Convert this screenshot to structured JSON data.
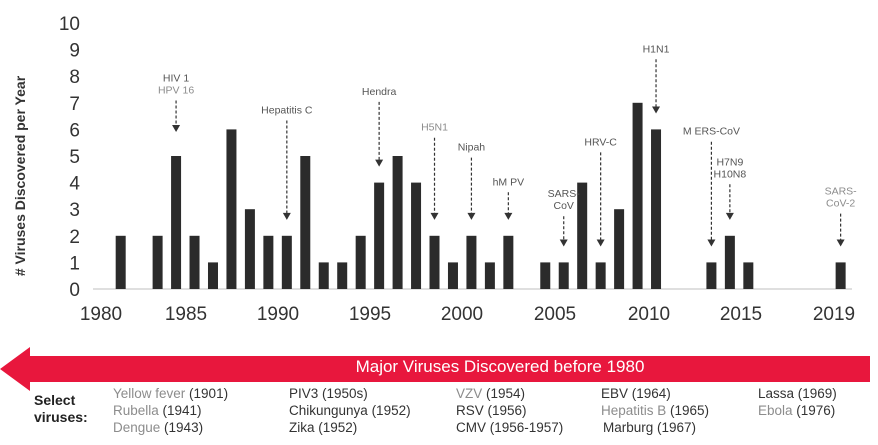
{
  "chart_data": {
    "type": "bar",
    "ylabel": "# Viruses Discovered per Year",
    "ylim": [
      0,
      10
    ],
    "xlim": [
      1980,
      2019
    ],
    "x_ticks": [
      "1980",
      "1985",
      "1990",
      "1995",
      "2000",
      "2005",
      "2010",
      "2015",
      "2019"
    ],
    "y_ticks": [
      "0",
      "1",
      "2",
      "3",
      "4",
      "5",
      "6",
      "7",
      "8",
      "9",
      "10"
    ],
    "grid": false,
    "bar_color": "#2b2b2b",
    "bars": [
      {
        "year": 1981,
        "value": 2
      },
      {
        "year": 1983,
        "value": 2
      },
      {
        "year": 1984,
        "value": 5
      },
      {
        "year": 1985,
        "value": 2
      },
      {
        "year": 1986,
        "value": 1
      },
      {
        "year": 1987,
        "value": 6
      },
      {
        "year": 1988,
        "value": 3
      },
      {
        "year": 1989,
        "value": 2
      },
      {
        "year": 1990,
        "value": 2
      },
      {
        "year": 1991,
        "value": 5
      },
      {
        "year": 1992,
        "value": 1
      },
      {
        "year": 1993,
        "value": 1
      },
      {
        "year": 1994,
        "value": 2
      },
      {
        "year": 1995,
        "value": 4
      },
      {
        "year": 1996,
        "value": 5
      },
      {
        "year": 1997,
        "value": 4
      },
      {
        "year": 1998,
        "value": 2
      },
      {
        "year": 1999,
        "value": 1
      },
      {
        "year": 2000,
        "value": 2
      },
      {
        "year": 2001,
        "value": 1
      },
      {
        "year": 2002,
        "value": 2
      },
      {
        "year": 2004,
        "value": 1
      },
      {
        "year": 2005,
        "value": 1
      },
      {
        "year": 2006,
        "value": 4
      },
      {
        "year": 2007,
        "value": 1
      },
      {
        "year": 2008,
        "value": 3
      },
      {
        "year": 2009,
        "value": 7
      },
      {
        "year": 2010,
        "value": 6
      },
      {
        "year": 2013,
        "value": 1
      },
      {
        "year": 2014,
        "value": 2
      },
      {
        "year": 2015,
        "value": 1
      },
      {
        "year": 2020,
        "value": 1
      }
    ],
    "annotations": [
      {
        "lines": [
          "HIV 1",
          "HPV 16"
        ],
        "colors": [
          "#555555",
          "#8c8c8c"
        ],
        "year": 1984,
        "label_top": 5.9,
        "text_y": 7.8
      },
      {
        "lines": [
          "Hepatitis C"
        ],
        "colors": [
          "#555555"
        ],
        "year": 1990,
        "label_top": 2.6,
        "text_y": 6.6
      },
      {
        "lines": [
          "Hendra"
        ],
        "colors": [
          "#555555"
        ],
        "year": 1995,
        "label_top": 4.6,
        "text_y": 7.3
      },
      {
        "lines": [
          "H5N1"
        ],
        "colors": [
          "#8c8c8c"
        ],
        "year": 1998,
        "label_top": 2.6,
        "text_y": 5.95
      },
      {
        "lines": [
          "Nipah"
        ],
        "colors": [
          "#555555"
        ],
        "year": 2000,
        "label_top": 2.6,
        "text_y": 5.2
      },
      {
        "lines": [
          "hM PV"
        ],
        "colors": [
          "#555555"
        ],
        "year": 2002,
        "label_top": 2.6,
        "text_y": 3.9
      },
      {
        "lines": [
          "SARS-",
          "CoV"
        ],
        "colors": [
          "#555555",
          "#555555"
        ],
        "year": 2005,
        "label_top": 1.6,
        "text_y": 3.45
      },
      {
        "lines": [
          "HRV-C"
        ],
        "colors": [
          "#555555"
        ],
        "year": 2007,
        "label_top": 1.6,
        "text_y": 5.4
      },
      {
        "lines": [
          "H1N1"
        ],
        "colors": [
          "#555555"
        ],
        "year": 2010,
        "label_top": 6.6,
        "text_y": 8.9
      },
      {
        "lines": [
          "M ERS-CoV"
        ],
        "colors": [
          "#555555"
        ],
        "year": 2013,
        "label_top": 1.6,
        "text_y": 5.8
      },
      {
        "lines": [
          "H7N9",
          "H10N8"
        ],
        "colors": [
          "#555555",
          "#555555"
        ],
        "year": 2014,
        "label_top": 2.6,
        "text_y": 4.65
      },
      {
        "lines": [
          "SARS-",
          "CoV-2"
        ],
        "colors": [
          "#8c8c8c",
          "#8c8c8c"
        ],
        "year": 2020,
        "label_top": 1.6,
        "text_y": 3.55
      }
    ]
  },
  "banner": {
    "text": "Major Viruses Discovered before 1980",
    "color": "#e8173d"
  },
  "select_viruses": {
    "label": "Select viruses:",
    "columns": [
      [
        {
          "name": "Yellow fever",
          "year": "(1901)",
          "gray": true
        },
        {
          "name": "Rubella",
          "year": "(1941)",
          "gray": true
        },
        {
          "name": "Dengue",
          "year": "(1943)",
          "gray": true
        }
      ],
      [
        {
          "name": "PIV3",
          "year": "(1950s)",
          "gray": false
        },
        {
          "name": "Chikungunya",
          "year": "(1952)",
          "gray": false
        },
        {
          "name": "Zika",
          "year": "(1952)",
          "gray": false
        }
      ],
      [
        {
          "name": "VZV",
          "year": "(1954)",
          "gray": true
        },
        {
          "name": "RSV",
          "year": "(1956)",
          "gray": false
        },
        {
          "name": "CMV",
          "year": "(1956-1957)",
          "gray": false
        }
      ],
      [
        {
          "name": "EBV",
          "year": "(1964)",
          "gray": false
        },
        {
          "name": "Hepatitis B",
          "year": "(1965)",
          "gray": true
        },
        {
          "name": "Marburg",
          "year": "(1967)",
          "gray": false
        }
      ],
      [
        {
          "name": "Lassa",
          "year": "(1969)",
          "gray": false
        },
        {
          "name": "Ebola",
          "year": "(1976)",
          "gray": true
        }
      ]
    ]
  }
}
